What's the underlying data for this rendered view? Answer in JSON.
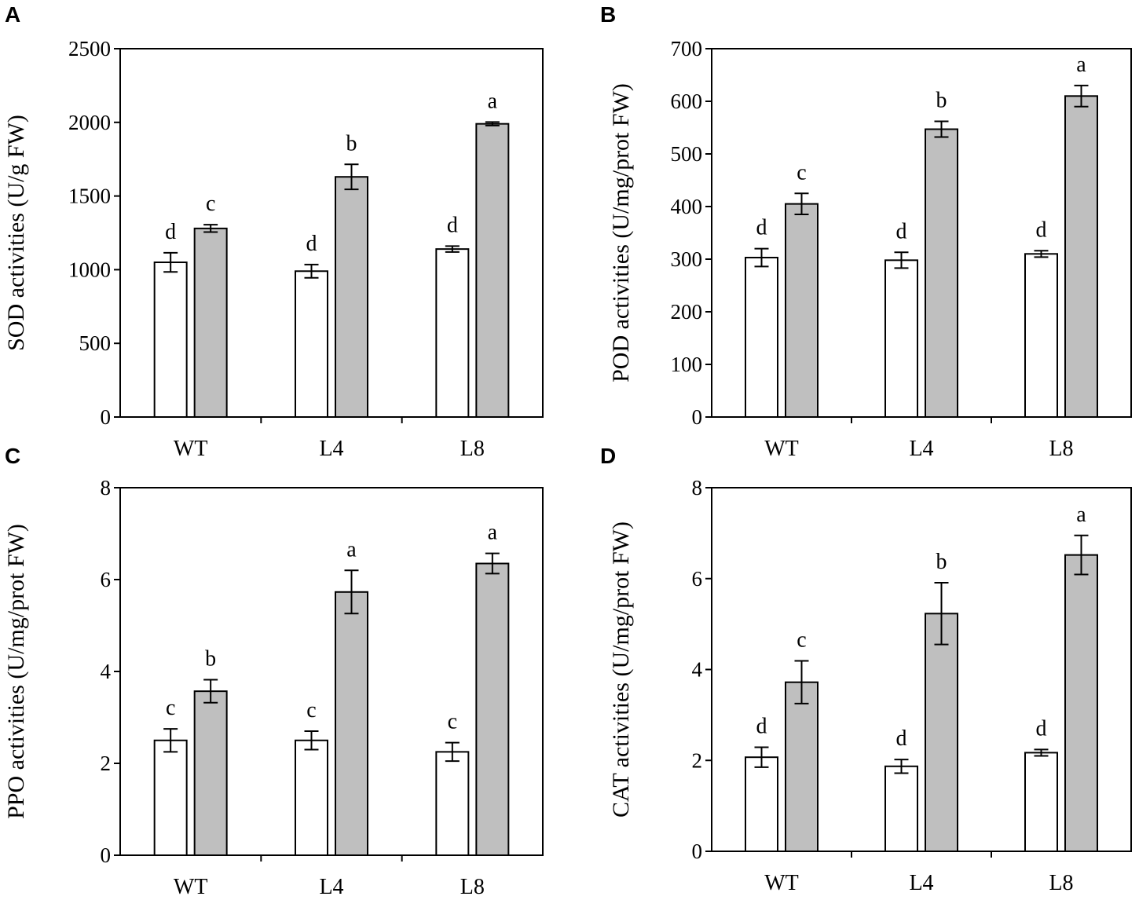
{
  "chart_data": [
    {
      "panel_label": "A",
      "type": "bar",
      "categories": [
        "WT",
        "L4",
        "L8"
      ],
      "ylabel": "SOD activities (U/g FW)",
      "ylim": [
        0,
        2500
      ],
      "yticks": [
        0,
        500,
        1000,
        1500,
        2000,
        2500
      ],
      "series": [
        {
          "name": "white",
          "color": "#ffffff",
          "values": [
            1050,
            990,
            1140
          ],
          "errors": [
            65,
            45,
            20
          ],
          "letters": [
            "d",
            "d",
            "d"
          ]
        },
        {
          "name": "gray",
          "color": "#bfbfbf",
          "values": [
            1280,
            1630,
            1990
          ],
          "errors": [
            25,
            85,
            12
          ],
          "letters": [
            "c",
            "b",
            "a"
          ]
        }
      ]
    },
    {
      "panel_label": "B",
      "type": "bar",
      "categories": [
        "WT",
        "L4",
        "L8"
      ],
      "ylabel": "POD activities (U/mg/prot FW)",
      "ylim": [
        0,
        700
      ],
      "yticks": [
        0,
        100,
        200,
        300,
        400,
        500,
        600,
        700
      ],
      "series": [
        {
          "name": "white",
          "color": "#ffffff",
          "values": [
            303,
            298,
            310
          ],
          "errors": [
            17,
            15,
            6
          ],
          "letters": [
            "d",
            "d",
            "d"
          ]
        },
        {
          "name": "gray",
          "color": "#bfbfbf",
          "values": [
            405,
            547,
            610
          ],
          "errors": [
            20,
            15,
            20
          ],
          "letters": [
            "c",
            "b",
            "a"
          ]
        }
      ]
    },
    {
      "panel_label": "C",
      "type": "bar",
      "categories": [
        "WT",
        "L4",
        "L8"
      ],
      "ylabel": "PPO activities (U/mg/prot FW)",
      "ylim": [
        0,
        8
      ],
      "yticks": [
        0,
        2,
        4,
        6,
        8
      ],
      "series": [
        {
          "name": "white",
          "color": "#ffffff",
          "values": [
            2.5,
            2.5,
            2.25
          ],
          "errors": [
            0.25,
            0.2,
            0.2
          ],
          "letters": [
            "c",
            "c",
            "c"
          ]
        },
        {
          "name": "gray",
          "color": "#bfbfbf",
          "values": [
            3.57,
            5.73,
            6.35
          ],
          "errors": [
            0.25,
            0.47,
            0.22
          ],
          "letters": [
            "b",
            "a",
            "a"
          ]
        }
      ]
    },
    {
      "panel_label": "D",
      "type": "bar",
      "categories": [
        "WT",
        "L4",
        "L8"
      ],
      "ylabel": "CAT activities (U/mg/prot FW)",
      "ylim": [
        0,
        8
      ],
      "yticks": [
        0,
        2,
        4,
        6,
        8
      ],
      "series": [
        {
          "name": "white",
          "color": "#ffffff",
          "values": [
            2.07,
            1.87,
            2.17
          ],
          "errors": [
            0.22,
            0.15,
            0.07
          ],
          "letters": [
            "d",
            "d",
            "d"
          ]
        },
        {
          "name": "gray",
          "color": "#bfbfbf",
          "values": [
            3.72,
            5.23,
            6.52
          ],
          "errors": [
            0.47,
            0.68,
            0.43
          ],
          "letters": [
            "c",
            "b",
            "a"
          ]
        }
      ]
    }
  ]
}
